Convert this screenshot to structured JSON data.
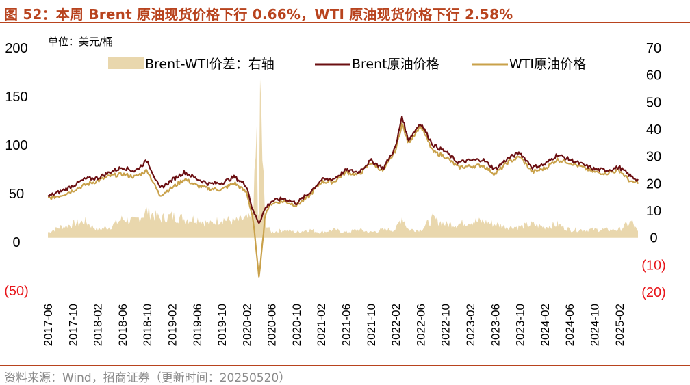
{
  "title": "图 52：本周 Brent 原油现货价格下行 0.66%，WTI 原油现货价格下行 2.58%",
  "source": "资料来源：Wind，招商证券（更新时间：20250520）",
  "colors": {
    "title": "#b8431e",
    "brent": "#6b0f12",
    "wti": "#c9a14a",
    "spread": "#e9d7ad",
    "negative": "#e8161b"
  },
  "chart_data": {
    "type": "line",
    "unit_label": "单位：美元/桶",
    "left_axis": {
      "ylim": [
        -50,
        200
      ],
      "ticks": [
        -50,
        0,
        50,
        100,
        150,
        200
      ],
      "tick_labels": [
        "(50)",
        "0",
        "50",
        "100",
        "150",
        "200"
      ]
    },
    "right_axis": {
      "ylim": [
        -20,
        70
      ],
      "ticks": [
        -20,
        -10,
        0,
        10,
        20,
        30,
        40,
        50,
        60,
        70
      ],
      "tick_labels": [
        "(20)",
        "(10)",
        "0",
        "10",
        "20",
        "30",
        "40",
        "50",
        "60",
        "70"
      ]
    },
    "x_tick_labels": [
      "2017-06",
      "2017-10",
      "2018-02",
      "2018-06",
      "2018-10",
      "2019-02",
      "2019-06",
      "2019-10",
      "2020-02",
      "2020-06",
      "2020-10",
      "2021-02",
      "2021-06",
      "2021-10",
      "2022-02",
      "2022-06",
      "2022-10",
      "2023-02",
      "2023-06",
      "2023-10",
      "2024-02",
      "2024-06",
      "2024-10",
      "2025-02"
    ],
    "legend": [
      "Brent-WTI价差：右轴",
      "Brent原油价格",
      "WTI原油价格"
    ],
    "x": [
      "2017-06",
      "2017-08",
      "2017-10",
      "2017-12",
      "2018-02",
      "2018-04",
      "2018-06",
      "2018-08",
      "2018-10",
      "2018-12",
      "2019-02",
      "2019-04",
      "2019-06",
      "2019-08",
      "2019-10",
      "2019-12",
      "2020-02",
      "2020-03",
      "2020-04",
      "2020-05",
      "2020-06",
      "2020-08",
      "2020-10",
      "2020-12",
      "2021-02",
      "2021-04",
      "2021-06",
      "2021-08",
      "2021-10",
      "2021-12",
      "2022-02",
      "2022-03",
      "2022-04",
      "2022-06",
      "2022-08",
      "2022-10",
      "2022-12",
      "2023-02",
      "2023-04",
      "2023-06",
      "2023-08",
      "2023-10",
      "2023-12",
      "2024-02",
      "2024-04",
      "2024-06",
      "2024-08",
      "2024-10",
      "2024-12",
      "2025-02",
      "2025-04",
      "2025-05"
    ],
    "series": [
      {
        "name": "Brent原油价格",
        "axis": "left",
        "values": [
          47,
          52,
          58,
          65,
          66,
          72,
          77,
          73,
          84,
          55,
          64,
          72,
          65,
          60,
          61,
          67,
          58,
          32,
          20,
          35,
          42,
          45,
          40,
          50,
          64,
          65,
          74,
          72,
          84,
          76,
          98,
          130,
          105,
          123,
          100,
          93,
          82,
          84,
          85,
          75,
          86,
          92,
          77,
          80,
          90,
          85,
          80,
          75,
          74,
          77,
          67,
          64
        ]
      },
      {
        "name": "WTI原油价格",
        "axis": "left",
        "values": [
          45,
          48,
          53,
          59,
          63,
          68,
          70,
          67,
          74,
          48,
          56,
          65,
          58,
          55,
          54,
          61,
          51,
          25,
          -37,
          30,
          40,
          42,
          38,
          47,
          62,
          62,
          72,
          69,
          82,
          73,
          95,
          122,
          102,
          120,
          93,
          88,
          77,
          78,
          79,
          70,
          82,
          88,
          72,
          76,
          85,
          82,
          77,
          72,
          71,
          74,
          61,
          62
        ]
      },
      {
        "name": "Brent-WTI价差：右轴",
        "axis": "right",
        "values": [
          2,
          4,
          5,
          6,
          3,
          4,
          7,
          6,
          10,
          7,
          8,
          7,
          7,
          5,
          7,
          6,
          7,
          7,
          57,
          5,
          2,
          3,
          2,
          3,
          2,
          3,
          2,
          3,
          2,
          3,
          3,
          8,
          3,
          3,
          7,
          5,
          5,
          6,
          6,
          5,
          4,
          4,
          5,
          4,
          5,
          3,
          3,
          3,
          3,
          3,
          6,
          2
        ]
      }
    ]
  }
}
